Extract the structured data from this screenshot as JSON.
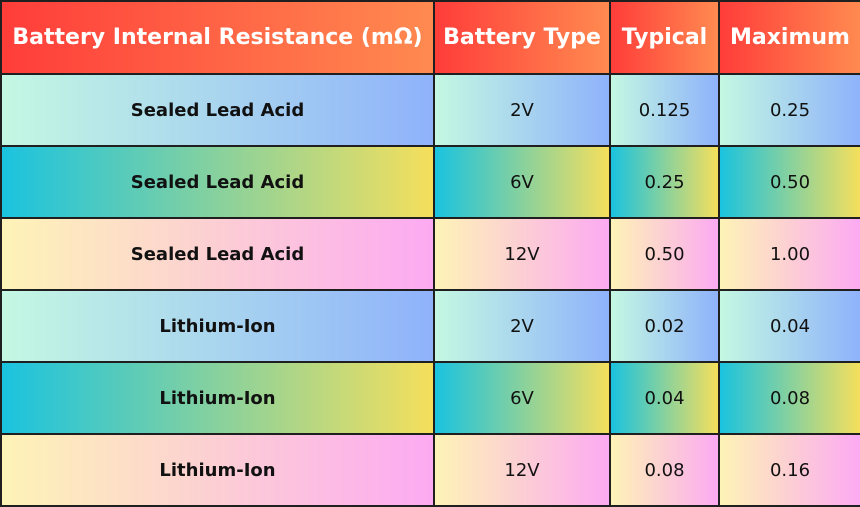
{
  "table": {
    "headers": [
      "Battery Internal Resistance (mΩ)",
      "Battery Type",
      "Typical",
      "Maximum"
    ],
    "rows": [
      [
        "Sealed Lead Acid",
        "2V",
        "0.125",
        "0.25"
      ],
      [
        "Sealed Lead Acid",
        "6V",
        "0.25",
        "0.50"
      ],
      [
        "Sealed Lead Acid",
        "12V",
        "0.50",
        "1.00"
      ],
      [
        "Lithium-Ion",
        "2V",
        "0.02",
        "0.04"
      ],
      [
        "Lithium-Ion",
        "6V",
        "0.04",
        "0.08"
      ],
      [
        "Lithium-Ion",
        "12V",
        "0.08",
        "0.16"
      ]
    ]
  },
  "colors": {
    "header_gradient": [
      "#ff3d3a",
      "#ff8a50"
    ],
    "row_gradients": [
      [
        "#c4f8e2",
        "#8fb2fb"
      ],
      [
        "#1ac3df",
        "#f5df5c"
      ],
      [
        "#fdf3b6",
        "#fcaaf2"
      ]
    ]
  },
  "chart_data": {
    "type": "table",
    "columns": [
      "Battery Internal Resistance (mΩ)",
      "Battery Type",
      "Typical",
      "Maximum"
    ],
    "rows": [
      [
        "Sealed Lead Acid",
        "2V",
        0.125,
        0.25
      ],
      [
        "Sealed Lead Acid",
        "6V",
        0.25,
        0.5
      ],
      [
        "Sealed Lead Acid",
        "12V",
        0.5,
        1.0
      ],
      [
        "Lithium-Ion",
        "2V",
        0.02,
        0.04
      ],
      [
        "Lithium-Ion",
        "6V",
        0.04,
        0.08
      ],
      [
        "Lithium-Ion",
        "12V",
        0.08,
        0.16
      ]
    ]
  }
}
